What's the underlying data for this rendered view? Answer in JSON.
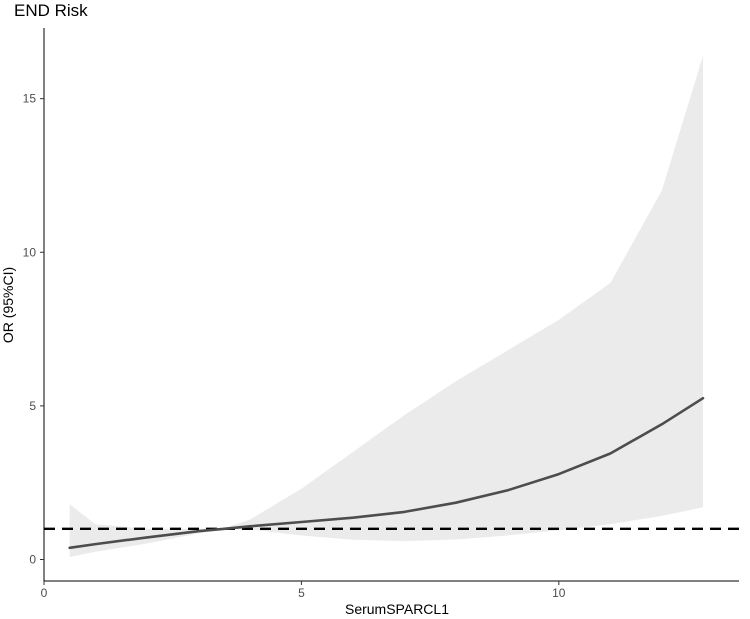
{
  "chart_data": {
    "type": "line",
    "title": "END Risk",
    "xlabel": "SerumSPARCL1",
    "ylabel": "OR (95%CI)",
    "xlim": [
      0,
      13.5
    ],
    "ylim": [
      -0.7,
      17.3
    ],
    "xticks": [
      0,
      5,
      10
    ],
    "yticks": [
      0,
      5,
      10,
      15
    ],
    "reference_line": {
      "y": 1,
      "style": "dashed",
      "color": "#000000"
    },
    "series": [
      {
        "name": "OR",
        "color": "#4d4d4d",
        "x": [
          0.5,
          1.0,
          2.0,
          3.0,
          3.5,
          4.0,
          5.0,
          6.0,
          7.0,
          8.0,
          9.0,
          10.0,
          11.0,
          12.0,
          12.8
        ],
        "y": [
          0.38,
          0.5,
          0.72,
          0.92,
          1.0,
          1.08,
          1.22,
          1.36,
          1.55,
          1.85,
          2.25,
          2.78,
          3.45,
          4.4,
          5.25
        ]
      }
    ],
    "confidence_band": {
      "name": "95% CI",
      "color": "#ebebeb",
      "x": [
        0.5,
        1.0,
        2.0,
        3.0,
        3.5,
        4.0,
        5.0,
        6.0,
        7.0,
        8.0,
        9.0,
        10.0,
        11.0,
        12.0,
        12.8
      ],
      "lower": [
        0.08,
        0.25,
        0.52,
        0.85,
        1.0,
        0.98,
        0.78,
        0.64,
        0.6,
        0.65,
        0.78,
        0.95,
        1.15,
        1.42,
        1.7
      ],
      "upper": [
        1.8,
        1.15,
        1.0,
        1.0,
        1.02,
        1.3,
        2.3,
        3.5,
        4.7,
        5.8,
        6.8,
        7.8,
        9.0,
        12.0,
        16.4
      ]
    }
  }
}
